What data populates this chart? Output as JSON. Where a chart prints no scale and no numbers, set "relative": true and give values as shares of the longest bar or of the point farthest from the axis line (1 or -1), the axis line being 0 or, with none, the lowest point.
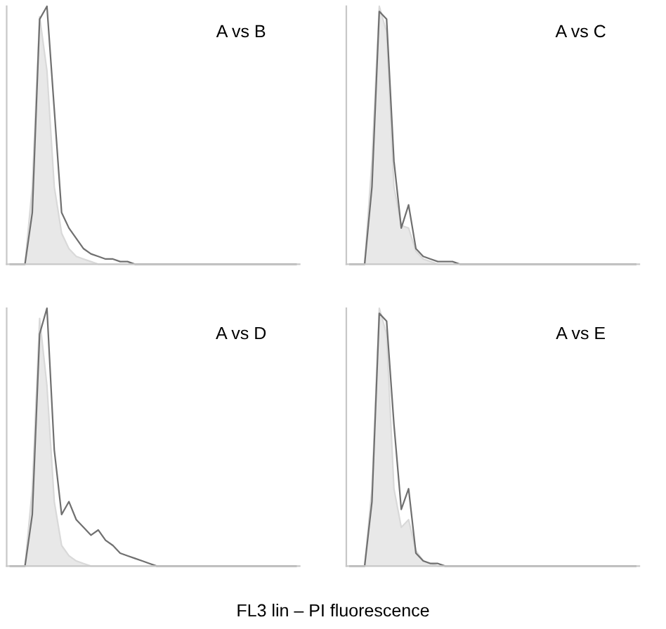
{
  "chart_data": [
    {
      "type": "area",
      "title": "A vs B",
      "relative": true,
      "grid": false,
      "categories": [
        null,
        null,
        null,
        null,
        null,
        null,
        null,
        null,
        null,
        null,
        null,
        null,
        null,
        null,
        null,
        null,
        null,
        null,
        null,
        null,
        null,
        null,
        null,
        null,
        null,
        null,
        null,
        null,
        null,
        null,
        null,
        null,
        null,
        null,
        null,
        null,
        null,
        null,
        null,
        null
      ],
      "series": [
        {
          "type": "area",
          "color": "#d9d9d9",
          "values": [
            0,
            0,
            0,
            0.3,
            0.96,
            0.75,
            0.3,
            0.12,
            0.06,
            0.03,
            0.02,
            0.01,
            0,
            0,
            0,
            0,
            0,
            0,
            0,
            0,
            0,
            0,
            0,
            0,
            0,
            0,
            0,
            0,
            0,
            0,
            0,
            0,
            0,
            0,
            0,
            0,
            0,
            0,
            0,
            0
          ]
        },
        {
          "type": "line",
          "color": "#707070",
          "values": [
            0,
            0,
            0,
            0.2,
            0.95,
            1.0,
            0.6,
            0.2,
            0.14,
            0.1,
            0.06,
            0.04,
            0.03,
            0.02,
            0.02,
            0.01,
            0.01,
            0,
            0,
            0,
            0,
            0,
            0,
            0,
            0,
            0,
            0,
            0,
            0,
            0,
            0,
            0,
            0,
            0,
            0,
            0,
            0,
            0,
            0,
            0
          ]
        }
      ]
    },
    {
      "type": "area",
      "title": "A vs C",
      "relative": true,
      "grid": false,
      "categories": [
        null,
        null,
        null,
        null,
        null,
        null,
        null,
        null,
        null,
        null,
        null,
        null,
        null,
        null,
        null,
        null,
        null,
        null,
        null,
        null,
        null,
        null,
        null,
        null,
        null,
        null,
        null,
        null,
        null,
        null,
        null,
        null,
        null,
        null,
        null,
        null,
        null,
        null,
        null,
        null
      ],
      "series": [
        {
          "color": "#d9d9d9",
          "values": [
            0,
            0,
            0,
            0.4,
            1.0,
            0.9,
            0.3,
            0.15,
            0.14,
            0.05,
            0.02,
            0.01,
            0,
            0,
            0,
            0,
            0,
            0,
            0,
            0,
            0,
            0,
            0,
            0,
            0,
            0,
            0,
            0,
            0,
            0,
            0,
            0,
            0,
            0,
            0,
            0,
            0,
            0,
            0,
            0
          ]
        },
        {
          "type": "line",
          "color": "#707070",
          "values": [
            0,
            0,
            0,
            0.3,
            0.98,
            0.95,
            0.4,
            0.14,
            0.23,
            0.06,
            0.03,
            0.02,
            0.01,
            0.01,
            0.01,
            0,
            0,
            0,
            0,
            0,
            0,
            0,
            0,
            0,
            0,
            0,
            0,
            0,
            0,
            0,
            0,
            0,
            0,
            0,
            0,
            0,
            0,
            0,
            0,
            0
          ]
        }
      ]
    },
    {
      "type": "area",
      "title": "A vs D",
      "relative": true,
      "grid": false,
      "categories": [
        null,
        null,
        null,
        null,
        null,
        null,
        null,
        null,
        null,
        null,
        null,
        null,
        null,
        null,
        null,
        null,
        null,
        null,
        null,
        null,
        null,
        null,
        null,
        null,
        null,
        null,
        null,
        null,
        null,
        null,
        null,
        null,
        null,
        null,
        null,
        null,
        null,
        null,
        null,
        null
      ],
      "series": [
        {
          "type": "area",
          "color": "#d9d9d9",
          "values": [
            0,
            0,
            0,
            0.3,
            0.96,
            0.7,
            0.25,
            0.08,
            0.04,
            0.02,
            0.01,
            0,
            0,
            0,
            0,
            0,
            0,
            0,
            0,
            0,
            0,
            0,
            0,
            0,
            0,
            0,
            0,
            0,
            0,
            0,
            0,
            0,
            0,
            0,
            0,
            0,
            0,
            0,
            0,
            0
          ]
        },
        {
          "type": "line",
          "color": "#707070",
          "values": [
            0,
            0,
            0,
            0.2,
            0.9,
            1.0,
            0.45,
            0.2,
            0.25,
            0.18,
            0.15,
            0.12,
            0.14,
            0.1,
            0.08,
            0.05,
            0.04,
            0.03,
            0.02,
            0.01,
            0,
            0,
            0,
            0,
            0,
            0,
            0,
            0,
            0,
            0,
            0,
            0,
            0,
            0,
            0,
            0,
            0,
            0,
            0,
            0
          ]
        }
      ]
    },
    {
      "type": "area",
      "title": "A vs E",
      "relative": true,
      "grid": false,
      "categories": [
        null,
        null,
        null,
        null,
        null,
        null,
        null,
        null,
        null,
        null,
        null,
        null,
        null,
        null,
        null,
        null,
        null,
        null,
        null,
        null,
        null,
        null,
        null,
        null,
        null,
        null,
        null,
        null,
        null,
        null,
        null,
        null,
        null,
        null,
        null,
        null,
        null,
        null,
        null,
        null
      ],
      "annotations": [
        "FL3 lin – PI fluorescence"
      ],
      "series": [
        {
          "color": "#d9d9d9",
          "values": [
            0,
            0,
            0,
            0.3,
            1.0,
            0.9,
            0.3,
            0.15,
            0.18,
            0.06,
            0.02,
            0.01,
            0,
            0,
            0,
            0,
            0,
            0,
            0,
            0,
            0,
            0,
            0,
            0,
            0,
            0,
            0,
            0,
            0,
            0,
            0,
            0,
            0,
            0,
            0,
            0,
            0,
            0,
            0,
            0
          ]
        },
        {
          "type": "line",
          "color": "#707070",
          "values": [
            0,
            0,
            0,
            0.25,
            0.98,
            0.95,
            0.55,
            0.22,
            0.3,
            0.05,
            0.02,
            0.01,
            0.01,
            0,
            0,
            0,
            0,
            0,
            0,
            0,
            0,
            0,
            0,
            0,
            0,
            0,
            0,
            0,
            0,
            0,
            0,
            0,
            0,
            0,
            0,
            0,
            0,
            0,
            0,
            0
          ]
        }
      ]
    }
  ]
}
